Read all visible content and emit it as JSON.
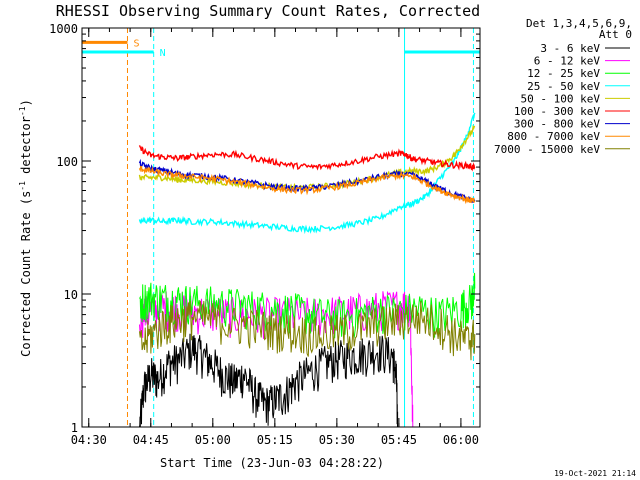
{
  "chart_data": {
    "type": "line",
    "title": "RHESSI Observing Summary Count Rates, Corrected",
    "xlabel": "Start Time (23-Jun-03 04:28:22)",
    "ylabel_main": "Corrected Count Rate (s",
    "ylabel_sup1": "-1",
    "ylabel_mid": " detector",
    "ylabel_sup2": "-1",
    "ylabel_end": ")",
    "footer_date": "19-Oct-2021 21:14",
    "yscale": "log",
    "ylim": [
      1,
      1000
    ],
    "xlim": [
      0,
      5775
    ],
    "x_units": "seconds since 04:28:22",
    "xticks": [
      {
        "label": "04:30",
        "t": 98
      },
      {
        "label": "04:45",
        "t": 998
      },
      {
        "label": "05:00",
        "t": 1898
      },
      {
        "label": "05:15",
        "t": 2798
      },
      {
        "label": "05:30",
        "t": 3698
      },
      {
        "label": "05:45",
        "t": 4598
      },
      {
        "label": "06:00",
        "t": 5498
      }
    ],
    "yticks": [
      {
        "label": "1",
        "v": 1
      },
      {
        "label": "10",
        "v": 10
      },
      {
        "label": "100",
        "v": 100
      },
      {
        "label": "1000",
        "v": 1000
      }
    ],
    "legend": {
      "header1": "Det 1,3,4,5,6,9,",
      "header2": "Att 0",
      "placement": "right"
    },
    "series": [
      {
        "name": "3 - 6 keV",
        "color": "#000000",
        "points": [
          [
            835,
            1
          ],
          [
            900,
            2
          ],
          [
            1000,
            2.5
          ],
          [
            1100,
            2.3
          ],
          [
            1250,
            3
          ],
          [
            1400,
            3.2
          ],
          [
            1600,
            4
          ],
          [
            1750,
            3.5
          ],
          [
            1900,
            3
          ],
          [
            2050,
            2.5
          ],
          [
            2200,
            2.2
          ],
          [
            2350,
            2.5
          ],
          [
            2500,
            1.8
          ],
          [
            2650,
            1.5
          ],
          [
            2800,
            1.6
          ],
          [
            2950,
            1.8
          ],
          [
            3100,
            2.2
          ],
          [
            3300,
            2.6
          ],
          [
            3500,
            3
          ],
          [
            3700,
            3.3
          ],
          [
            3900,
            3.5
          ],
          [
            4100,
            3.6
          ],
          [
            4300,
            3.8
          ],
          [
            4500,
            3.5
          ],
          [
            4560,
            2.5
          ],
          [
            4580,
            1
          ]
        ]
      },
      {
        "name": "6 - 12 keV",
        "color": "#ff00ff",
        "points": [
          [
            835,
            7
          ],
          [
            1000,
            7.5
          ],
          [
            1200,
            8
          ],
          [
            1400,
            7.8
          ],
          [
            1600,
            7.5
          ],
          [
            1900,
            7.3
          ],
          [
            2200,
            7
          ],
          [
            2500,
            7
          ],
          [
            2800,
            7
          ],
          [
            3100,
            7
          ],
          [
            3400,
            7
          ],
          [
            3700,
            7.3
          ],
          [
            4000,
            7.5
          ],
          [
            4300,
            7.8
          ],
          [
            4600,
            8.2
          ],
          [
            4760,
            8.5
          ],
          [
            4800,
            1
          ]
        ]
      },
      {
        "name": "12 - 25 keV",
        "color": "#00ff00",
        "points": [
          [
            835,
            9
          ],
          [
            1000,
            9.5
          ],
          [
            1200,
            9.2
          ],
          [
            1400,
            9
          ],
          [
            1600,
            8.8
          ],
          [
            1900,
            8.5
          ],
          [
            2200,
            8.3
          ],
          [
            2500,
            8
          ],
          [
            2800,
            7.8
          ],
          [
            3100,
            7.5
          ],
          [
            3400,
            7
          ],
          [
            3700,
            6.8
          ],
          [
            4000,
            7
          ],
          [
            4300,
            7.5
          ],
          [
            4600,
            7.5
          ],
          [
            4900,
            7.8
          ],
          [
            5200,
            7
          ],
          [
            5500,
            8
          ],
          [
            5650,
            9
          ],
          [
            5700,
            11
          ]
        ]
      },
      {
        "name": "25 - 50 keV",
        "color": "#00ffff",
        "points": [
          [
            835,
            35
          ],
          [
            1000,
            36
          ],
          [
            1200,
            35
          ],
          [
            1400,
            36
          ],
          [
            1600,
            35
          ],
          [
            1900,
            35
          ],
          [
            2200,
            34
          ],
          [
            2500,
            33
          ],
          [
            2800,
            32
          ],
          [
            3100,
            31
          ],
          [
            3400,
            31
          ],
          [
            3700,
            32
          ],
          [
            4000,
            34
          ],
          [
            4300,
            37
          ],
          [
            4600,
            45
          ],
          [
            4800,
            48
          ],
          [
            5000,
            55
          ],
          [
            5200,
            75
          ],
          [
            5400,
            100
          ],
          [
            5550,
            140
          ],
          [
            5700,
            230
          ]
        ]
      },
      {
        "name": "50 - 100 keV",
        "color": "#cccc00",
        "points": [
          [
            835,
            75
          ],
          [
            1000,
            75
          ],
          [
            1200,
            75
          ],
          [
            1400,
            72
          ],
          [
            1600,
            72
          ],
          [
            1900,
            70
          ],
          [
            2200,
            68
          ],
          [
            2500,
            66
          ],
          [
            2800,
            64
          ],
          [
            3100,
            63
          ],
          [
            3400,
            64
          ],
          [
            3700,
            66
          ],
          [
            4000,
            70
          ],
          [
            4300,
            76
          ],
          [
            4600,
            82
          ],
          [
            4800,
            84
          ],
          [
            5000,
            84
          ],
          [
            5200,
            92
          ],
          [
            5400,
            110
          ],
          [
            5550,
            140
          ],
          [
            5700,
            180
          ]
        ]
      },
      {
        "name": "100 - 300 keV",
        "color": "#ff0000",
        "points": [
          [
            835,
            125
          ],
          [
            1000,
            110
          ],
          [
            1200,
            107
          ],
          [
            1400,
            105
          ],
          [
            1600,
            108
          ],
          [
            1900,
            112
          ],
          [
            2200,
            112
          ],
          [
            2500,
            105
          ],
          [
            2800,
            98
          ],
          [
            3100,
            92
          ],
          [
            3400,
            90
          ],
          [
            3700,
            94
          ],
          [
            4000,
            100
          ],
          [
            4300,
            108
          ],
          [
            4600,
            114
          ],
          [
            4700,
            112
          ],
          [
            4800,
            104
          ],
          [
            5000,
            100
          ],
          [
            5200,
            96
          ],
          [
            5400,
            93
          ],
          [
            5600,
            92
          ],
          [
            5700,
            90
          ]
        ]
      },
      {
        "name": "300 - 800 keV",
        "color": "#0000cc",
        "points": [
          [
            835,
            95
          ],
          [
            1000,
            88
          ],
          [
            1200,
            84
          ],
          [
            1400,
            80
          ],
          [
            1600,
            78
          ],
          [
            1900,
            76
          ],
          [
            2200,
            72
          ],
          [
            2500,
            68
          ],
          [
            2800,
            64
          ],
          [
            3100,
            62
          ],
          [
            3400,
            63
          ],
          [
            3700,
            66
          ],
          [
            4000,
            70
          ],
          [
            4300,
            76
          ],
          [
            4600,
            80
          ],
          [
            4800,
            78
          ],
          [
            5000,
            70
          ],
          [
            5200,
            62
          ],
          [
            5400,
            56
          ],
          [
            5600,
            52
          ],
          [
            5700,
            50
          ]
        ]
      },
      {
        "name": "800 - 7000 keV",
        "color": "#ff8800",
        "points": [
          [
            835,
            88
          ],
          [
            1000,
            84
          ],
          [
            1200,
            80
          ],
          [
            1400,
            78
          ],
          [
            1600,
            76
          ],
          [
            1900,
            74
          ],
          [
            2200,
            70
          ],
          [
            2500,
            66
          ],
          [
            2800,
            62
          ],
          [
            3100,
            60
          ],
          [
            3400,
            61
          ],
          [
            3700,
            64
          ],
          [
            4000,
            68
          ],
          [
            4300,
            74
          ],
          [
            4600,
            78
          ],
          [
            4800,
            76
          ],
          [
            5000,
            68
          ],
          [
            5200,
            60
          ],
          [
            5400,
            55
          ],
          [
            5600,
            51
          ],
          [
            5700,
            50
          ]
        ]
      },
      {
        "name": "7000 - 15000 keV",
        "color": "#808000",
        "points": [
          [
            835,
            4
          ],
          [
            1000,
            5
          ],
          [
            1200,
            6
          ],
          [
            1400,
            6.5
          ],
          [
            1600,
            6.8
          ],
          [
            1900,
            6.5
          ],
          [
            2200,
            6
          ],
          [
            2500,
            5.8
          ],
          [
            2800,
            5.5
          ],
          [
            3100,
            5.3
          ],
          [
            3400,
            5
          ],
          [
            3700,
            5.2
          ],
          [
            4000,
            5.5
          ],
          [
            4300,
            6
          ],
          [
            4600,
            6.5
          ],
          [
            4900,
            6.8
          ],
          [
            5200,
            6
          ],
          [
            5400,
            5
          ],
          [
            5600,
            4.5
          ],
          [
            5700,
            5
          ]
        ]
      }
    ],
    "flags": [
      {
        "name": "S",
        "color": "#ff8800",
        "t_start": 0,
        "t_end": 660,
        "v": 780,
        "marker_t": 660
      },
      {
        "name": "N",
        "color": "#00ffff",
        "t_start": 0,
        "t_end": 1040,
        "v": 660,
        "marker_t": 1040,
        "t_start2": 4680,
        "t_end2": 5775
      }
    ],
    "vlines": [
      {
        "t": 660,
        "color": "#ff8800",
        "style": "dashed"
      },
      {
        "t": 1040,
        "color": "#00ffff",
        "style": "dashed"
      },
      {
        "t": 5680,
        "color": "#00ffff",
        "style": "dashed"
      },
      {
        "t": 0,
        "color": "#00ffff",
        "style": "solid"
      },
      {
        "t": 4680,
        "color": "#00ffff",
        "style": "solid"
      }
    ]
  }
}
